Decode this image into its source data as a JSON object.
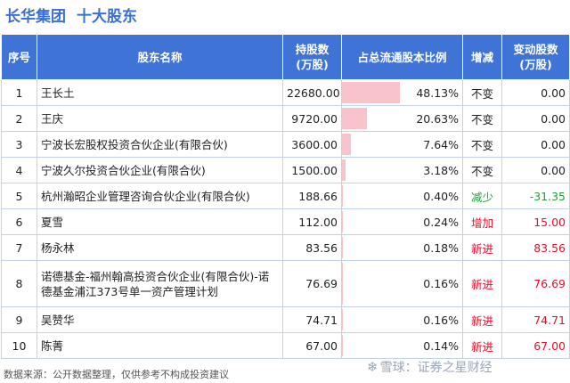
{
  "header": {
    "company": "长华集团",
    "subtitle": "十大股东"
  },
  "table": {
    "columns": {
      "idx": "序号",
      "name": "股东名称",
      "shares": "持股数\n(万股)",
      "ratio": "占总流通股本比例",
      "change_type": "增减",
      "change": "变动股数\n(万股)"
    },
    "rows": [
      {
        "idx": "1",
        "name": "王长土",
        "shares": "22680.00",
        "ratio": "48.13%",
        "ratio_value": 48.13,
        "change_type": "不变",
        "change": "0.00",
        "trend": "none"
      },
      {
        "idx": "2",
        "name": "王庆",
        "shares": "9720.00",
        "ratio": "20.63%",
        "ratio_value": 20.63,
        "change_type": "不变",
        "change": "0.00",
        "trend": "none"
      },
      {
        "idx": "3",
        "name": "宁波长宏股权投资合伙企业(有限合伙)",
        "shares": "3600.00",
        "ratio": "7.64%",
        "ratio_value": 7.64,
        "change_type": "不变",
        "change": "0.00",
        "trend": "none"
      },
      {
        "idx": "4",
        "name": "宁波久尔投资合伙企业(有限合伙)",
        "shares": "1500.00",
        "ratio": "3.18%",
        "ratio_value": 3.18,
        "change_type": "不变",
        "change": "0.00",
        "trend": "none"
      },
      {
        "idx": "5",
        "name": "杭州瀚昭企业管理咨询合伙企业(有限合伙)",
        "shares": "188.66",
        "ratio": "0.40%",
        "ratio_value": 0.4,
        "change_type": "减少",
        "change": "-31.35",
        "trend": "down"
      },
      {
        "idx": "6",
        "name": "夏雪",
        "shares": "112.00",
        "ratio": "0.24%",
        "ratio_value": 0.24,
        "change_type": "增加",
        "change": "15.00",
        "trend": "up"
      },
      {
        "idx": "7",
        "name": "杨永林",
        "shares": "83.56",
        "ratio": "0.18%",
        "ratio_value": 0.18,
        "change_type": "新进",
        "change": "83.56",
        "trend": "up"
      },
      {
        "idx": "8",
        "name": "诺德基金-福州翰高投资合伙企业(有限合伙)-诺德基金浦江373号单一资产管理计划",
        "shares": "76.69",
        "ratio": "0.16%",
        "ratio_value": 0.16,
        "change_type": "新进",
        "change": "76.69",
        "trend": "up"
      },
      {
        "idx": "9",
        "name": "吴赞华",
        "shares": "74.71",
        "ratio": "0.16%",
        "ratio_value": 0.16,
        "change_type": "新进",
        "change": "74.71",
        "trend": "up"
      },
      {
        "idx": "10",
        "name": "陈菁",
        "shares": "67.00",
        "ratio": "0.14%",
        "ratio_value": 0.14,
        "change_type": "新进",
        "change": "67.00",
        "trend": "up"
      }
    ]
  },
  "colors": {
    "header_bg": "#3f73d6",
    "title": "#3b6fd1",
    "bar": "#f9c3cc",
    "up": "#e0102d",
    "down": "#1f9e3a"
  },
  "footer": {
    "source": "数据来源：公开数据整理，仅供参考不构成投资建议"
  },
  "watermark": {
    "icon": "snowball-icon",
    "text": "雪球：证券之星财经"
  }
}
